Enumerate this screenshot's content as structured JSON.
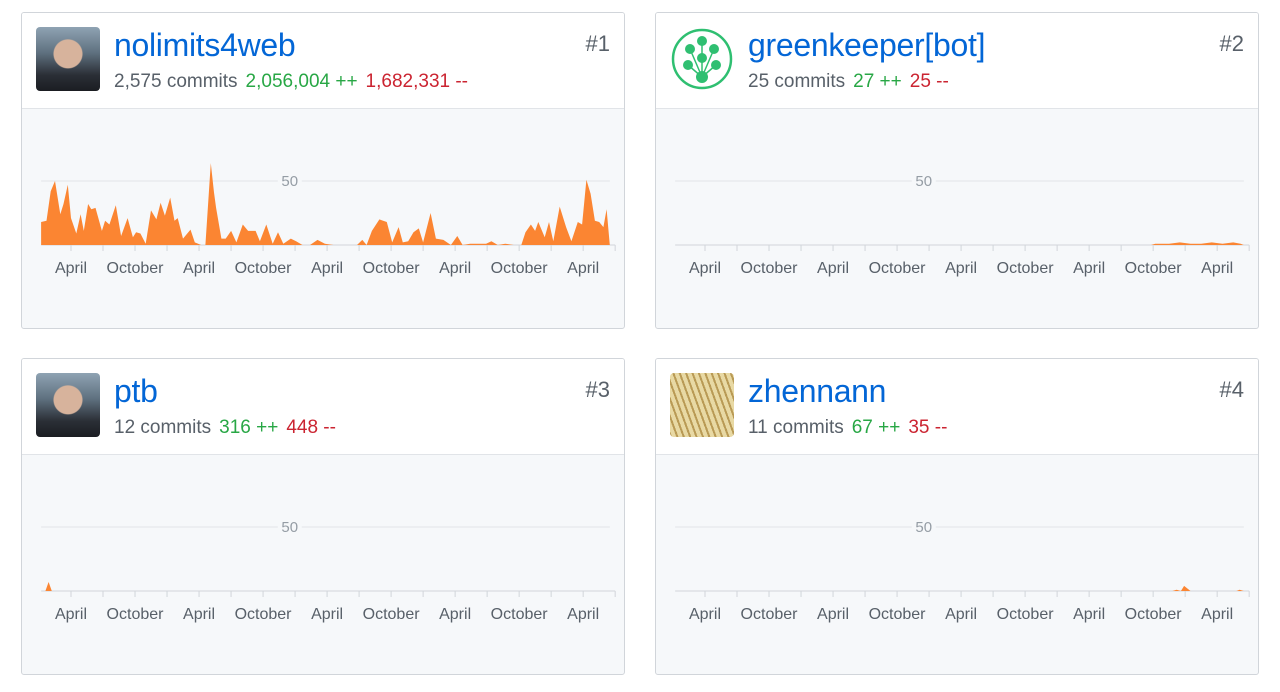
{
  "accent_color": "#fb8532",
  "contributors": [
    {
      "rank": "#1",
      "name": "nolimits4web",
      "commits": "2,575 commits",
      "additions": "2,056,004 ++",
      "deletions": "1,682,331 --",
      "avatar": "photo-avatar"
    },
    {
      "rank": "#2",
      "name": "greenkeeper[bot]",
      "commits": "25 commits",
      "additions": "27 ++",
      "deletions": "25 --",
      "avatar": "greenkeeper-logo"
    },
    {
      "rank": "#3",
      "name": "ptb",
      "commits": "12 commits",
      "additions": "316 ++",
      "deletions": "448 --",
      "avatar": "photo-avatar"
    },
    {
      "rank": "#4",
      "name": "zhennann",
      "commits": "11 commits",
      "additions": "67 ++",
      "deletions": "35 --",
      "avatar": "wheat-photo-avatar"
    }
  ],
  "chart_data": [
    {
      "type": "area",
      "ylabel_tick": "50",
      "x_unit": "month",
      "xlim": [
        0,
        54
      ],
      "ylim": [
        0,
        100
      ],
      "tick_labels": [
        "April",
        "October",
        "April",
        "October",
        "April",
        "October",
        "April",
        "October",
        "April"
      ],
      "points": [
        [
          0.2,
          18
        ],
        [
          0.7,
          19
        ],
        [
          1.1,
          42
        ],
        [
          1.5,
          50
        ],
        [
          2.0,
          24
        ],
        [
          2.3,
          32
        ],
        [
          2.7,
          47
        ],
        [
          3.0,
          21
        ],
        [
          3.5,
          9
        ],
        [
          3.9,
          24
        ],
        [
          4.2,
          11
        ],
        [
          4.6,
          32
        ],
        [
          4.9,
          28
        ],
        [
          5.3,
          29
        ],
        [
          5.9,
          11
        ],
        [
          6.2,
          19
        ],
        [
          6.6,
          16
        ],
        [
          7.2,
          31
        ],
        [
          7.7,
          7
        ],
        [
          8.3,
          21
        ],
        [
          8.8,
          6
        ],
        [
          9.1,
          10
        ],
        [
          9.5,
          9
        ],
        [
          10.0,
          1
        ],
        [
          10.5,
          27
        ],
        [
          11.0,
          20
        ],
        [
          11.4,
          33
        ],
        [
          11.8,
          23
        ],
        [
          12.3,
          37
        ],
        [
          12.7,
          19
        ],
        [
          13.0,
          21
        ],
        [
          13.5,
          5
        ],
        [
          14.2,
          12
        ],
        [
          14.6,
          2
        ],
        [
          15.2,
          0
        ],
        [
          15.6,
          0
        ],
        [
          16.1,
          64
        ],
        [
          16.4,
          41
        ],
        [
          16.6,
          29
        ],
        [
          17.1,
          5
        ],
        [
          17.5,
          5
        ],
        [
          18.0,
          11
        ],
        [
          18.5,
          2
        ],
        [
          19.1,
          16
        ],
        [
          19.6,
          11
        ],
        [
          20.3,
          11
        ],
        [
          20.7,
          3
        ],
        [
          21.3,
          16
        ],
        [
          21.9,
          1
        ],
        [
          22.4,
          10
        ],
        [
          22.9,
          1
        ],
        [
          23.6,
          5
        ],
        [
          24.1,
          3
        ],
        [
          24.7,
          0
        ],
        [
          25.4,
          0
        ],
        [
          26.1,
          4
        ],
        [
          26.8,
          1
        ],
        [
          27.6,
          0
        ],
        [
          28.7,
          0
        ],
        [
          29.8,
          0
        ],
        [
          30.3,
          4
        ],
        [
          30.7,
          0
        ],
        [
          31.2,
          11
        ],
        [
          31.9,
          20
        ],
        [
          32.6,
          18
        ],
        [
          33.1,
          2
        ],
        [
          33.7,
          14
        ],
        [
          34.1,
          2
        ],
        [
          34.6,
          3
        ],
        [
          35.1,
          10
        ],
        [
          35.6,
          13
        ],
        [
          36.0,
          2
        ],
        [
          36.7,
          25
        ],
        [
          37.2,
          5
        ],
        [
          37.9,
          4
        ],
        [
          38.6,
          0
        ],
        [
          39.2,
          7
        ],
        [
          39.7,
          0
        ],
        [
          40.4,
          1
        ],
        [
          41.2,
          1
        ],
        [
          41.9,
          1
        ],
        [
          42.4,
          3
        ],
        [
          43.0,
          0
        ],
        [
          43.7,
          1
        ],
        [
          44.5,
          0
        ],
        [
          45.2,
          0
        ],
        [
          45.6,
          10
        ],
        [
          46.1,
          16
        ],
        [
          46.5,
          11
        ],
        [
          46.8,
          18
        ],
        [
          47.4,
          6
        ],
        [
          47.8,
          18
        ],
        [
          48.2,
          3
        ],
        [
          48.8,
          30
        ],
        [
          49.4,
          14
        ],
        [
          49.9,
          3
        ],
        [
          50.5,
          18
        ],
        [
          50.9,
          16
        ],
        [
          51.3,
          51
        ],
        [
          51.7,
          40
        ],
        [
          52.1,
          19
        ],
        [
          52.5,
          18
        ],
        [
          52.9,
          14
        ],
        [
          53.2,
          28
        ],
        [
          53.5,
          0
        ]
      ]
    },
    {
      "type": "area",
      "ylabel_tick": "50",
      "x_unit": "month",
      "xlim": [
        0,
        54
      ],
      "ylim": [
        0,
        100
      ],
      "tick_labels": [
        "April",
        "October",
        "April",
        "October",
        "April",
        "October",
        "April",
        "October",
        "April"
      ],
      "points": [
        [
          0.2,
          0
        ],
        [
          44.8,
          0
        ],
        [
          45.2,
          1
        ],
        [
          46.5,
          1
        ],
        [
          47.5,
          2
        ],
        [
          48.5,
          1
        ],
        [
          49.5,
          1
        ],
        [
          50.5,
          2
        ],
        [
          51.5,
          1
        ],
        [
          52.5,
          2
        ],
        [
          53.2,
          1
        ],
        [
          53.5,
          0
        ]
      ]
    },
    {
      "type": "area",
      "ylabel_tick": "50",
      "x_unit": "month",
      "xlim": [
        0,
        54
      ],
      "ylim": [
        0,
        100
      ],
      "tick_labels": [
        "April",
        "October",
        "April",
        "October",
        "April",
        "October",
        "April",
        "October",
        "April"
      ],
      "points": [
        [
          0.2,
          0
        ],
        [
          0.6,
          0
        ],
        [
          0.9,
          7
        ],
        [
          1.2,
          0
        ],
        [
          53.5,
          0
        ]
      ]
    },
    {
      "type": "area",
      "ylabel_tick": "50",
      "x_unit": "month",
      "xlim": [
        0,
        54
      ],
      "ylim": [
        0,
        100
      ],
      "tick_labels": [
        "April",
        "October",
        "April",
        "October",
        "April",
        "October",
        "April",
        "October",
        "April"
      ],
      "points": [
        [
          0.2,
          0
        ],
        [
          46.8,
          0
        ],
        [
          47.2,
          1
        ],
        [
          47.6,
          0
        ],
        [
          47.9,
          4
        ],
        [
          48.5,
          0
        ],
        [
          52.8,
          0
        ],
        [
          53.1,
          1
        ],
        [
          53.5,
          0
        ]
      ]
    }
  ]
}
